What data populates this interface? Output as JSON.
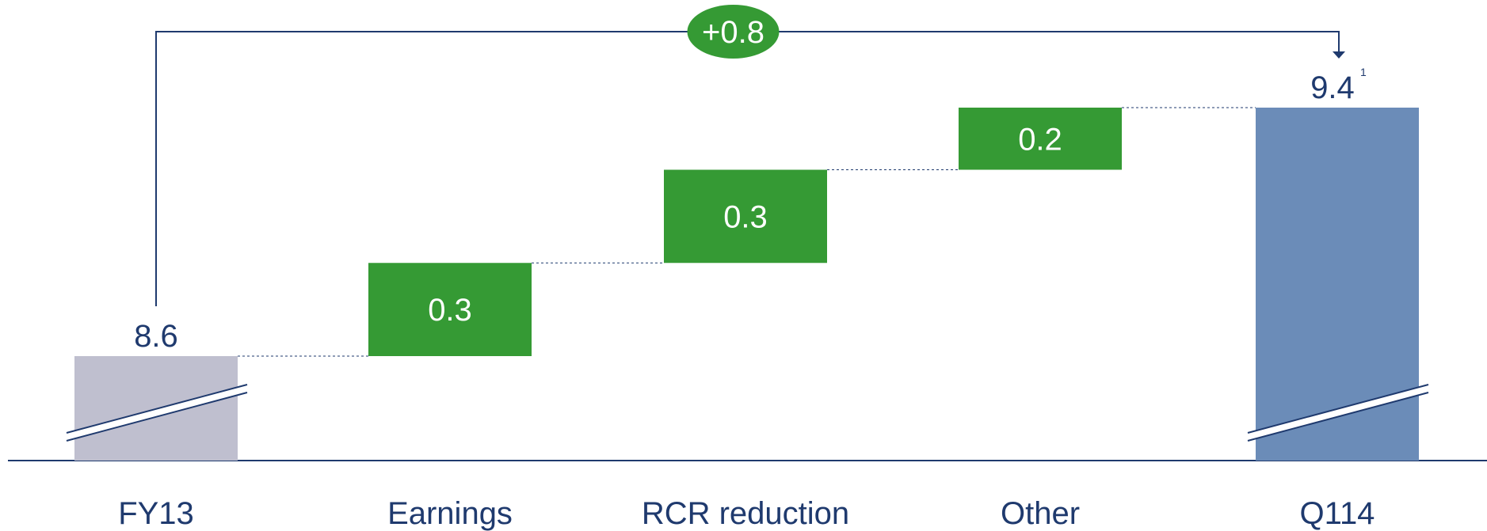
{
  "chart_data": {
    "type": "bar",
    "subtype": "waterfall",
    "categories": [
      "FY13",
      "Earnings",
      "RCR reduction",
      "Other",
      "Q114"
    ],
    "start": {
      "category": "FY13",
      "value": 8.6,
      "label": "8.6"
    },
    "steps": [
      {
        "category": "Earnings",
        "delta": 0.3,
        "label": "0.3"
      },
      {
        "category": "RCR reduction",
        "delta": 0.3,
        "label": "0.3"
      },
      {
        "category": "Other",
        "delta": 0.2,
        "label": "0.2"
      }
    ],
    "end": {
      "category": "Q114",
      "value": 9.4,
      "label": "9.4",
      "footnote": "1"
    },
    "total_change": {
      "value": 0.8,
      "label": "+0.8"
    },
    "axis_broken": true,
    "colors": {
      "start_bar": "#bfbfcf",
      "step_bar": "#359a34",
      "end_bar": "#6b8cb8",
      "text": "#1f3a6e",
      "connector": "#1f3a6e",
      "delta_badge": "#359a34"
    }
  }
}
